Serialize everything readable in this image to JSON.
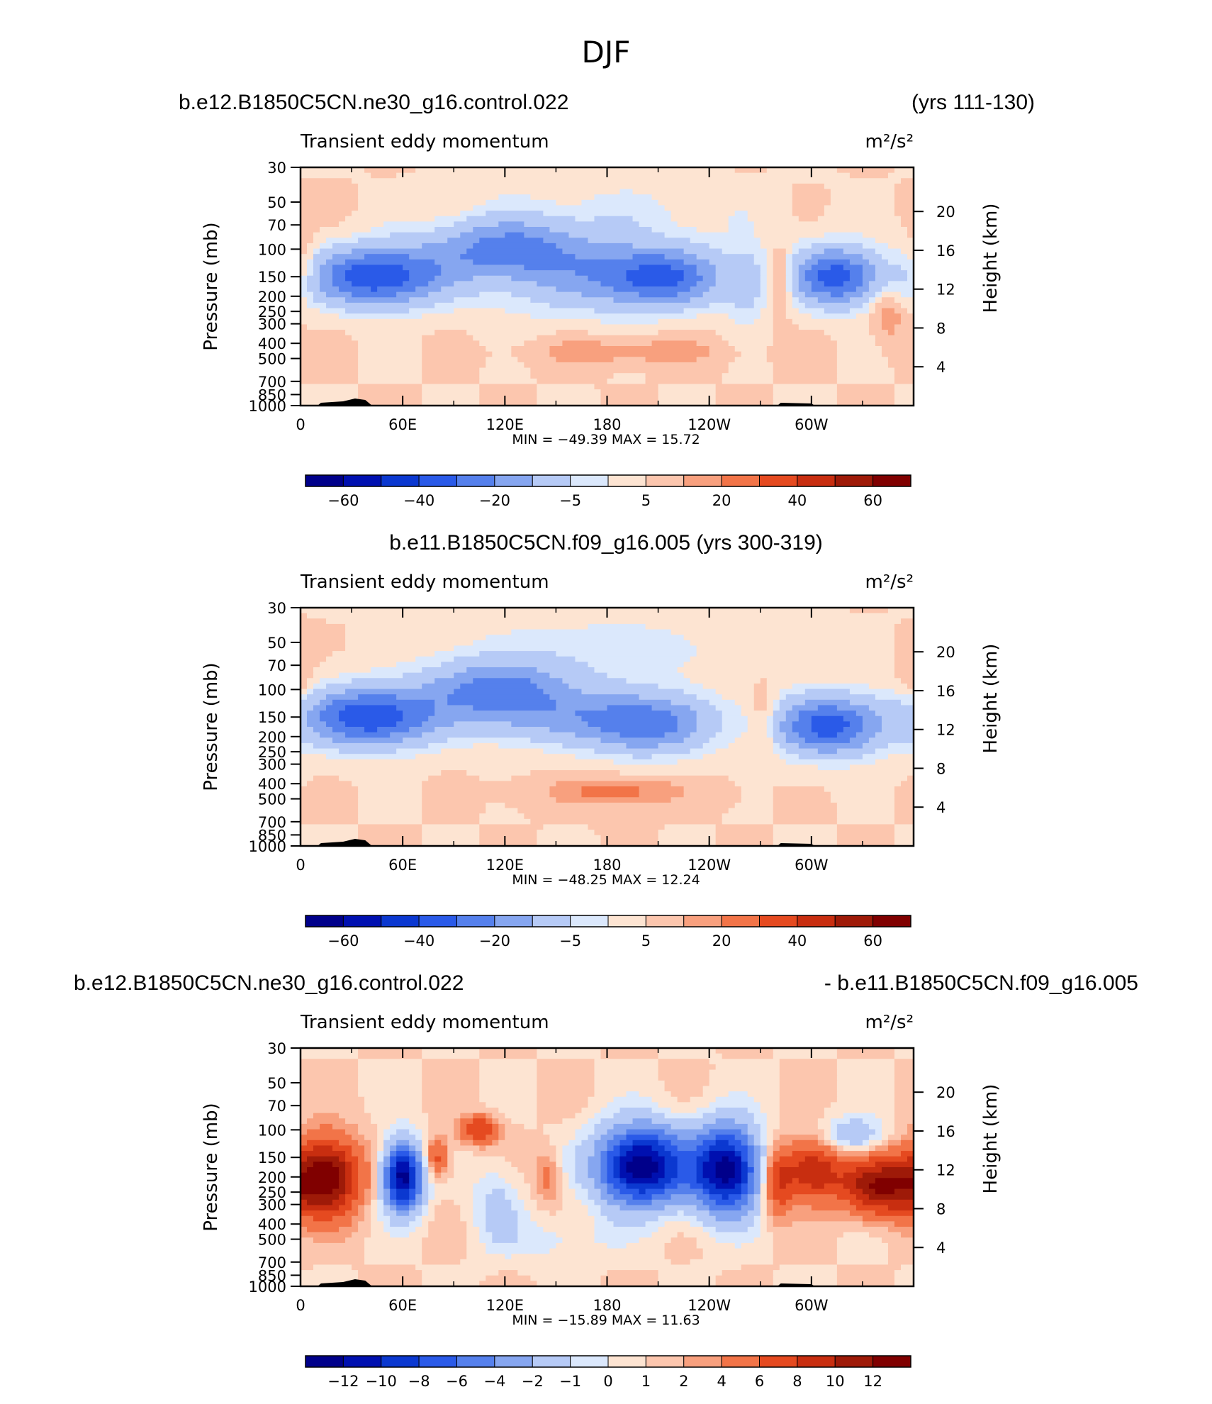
{
  "figure_title": "DJF",
  "colors": {
    "blues": [
      "#00008a",
      "#0010b0",
      "#0b38d0",
      "#2a5ae8",
      "#5580ec",
      "#86a6f0",
      "#b6caf6",
      "#dbe8fc"
    ],
    "reds": [
      "#fde4d2",
      "#fcc6ae",
      "#f8a07e",
      "#f27448",
      "#e54a20",
      "#c82e10",
      "#9e1a08",
      "#800000"
    ],
    "terrain": "#000000"
  },
  "chart_data": [
    {
      "type": "heatmap",
      "id": "panel-1",
      "case_left": "b.e12.B1850C5CN.ne30_g16.control.022",
      "case_right": "(yrs 111-130)",
      "case_center": "",
      "title": "Transient eddy momentum",
      "units": "m²/s²",
      "ylabel": "Pressure (mb)",
      "ylabel_right": "Height (km)",
      "xticks": [
        "0",
        "60E",
        "120E",
        "180",
        "120W",
        "60W"
      ],
      "yticks": [
        "30",
        "50",
        "70",
        "100",
        "150",
        "200",
        "250",
        "300",
        "400",
        "500",
        "700",
        "850",
        "1000"
      ],
      "yticks_right": [
        "20",
        "16",
        "12",
        "8",
        "4"
      ],
      "y_scale": "log-pressure",
      "ylim": [
        1000,
        30
      ],
      "xlim": [
        0,
        360
      ],
      "minmax": "MIN = −49.39   MAX =   15.72",
      "min": -49.39,
      "max": 15.72,
      "levels": [
        -70,
        -60,
        -50,
        -40,
        -30,
        -20,
        -10,
        -5,
        0,
        5,
        10,
        20,
        30,
        40,
        50,
        60,
        70
      ],
      "colorbar_labels": [
        "−60",
        "−40",
        "−20",
        "−5",
        "5",
        "20",
        "40",
        "60"
      ],
      "features": [
        {
          "lon": 45,
          "p": 150,
          "peak": -49.39,
          "lon_width": 26,
          "p_width": 0.3
        },
        {
          "lon": 120,
          "p": 100,
          "peak": -30,
          "lon_width": 32,
          "p_width": 0.3
        },
        {
          "lon": 155,
          "p": 150,
          "peak": -14,
          "lon_width": 40,
          "p_width": 0.42
        },
        {
          "lon": 210,
          "p": 150,
          "peak": -40,
          "lon_width": 27,
          "p_width": 0.3
        },
        {
          "lon": 262,
          "p": 170,
          "peak": -12,
          "lon_width": 8,
          "p_width": 0.4
        },
        {
          "lon": 282,
          "p": 160,
          "peak": 15.72,
          "lon_width": 4,
          "p_width": 0.32
        },
        {
          "lon": 315,
          "p": 150,
          "peak": -45,
          "lon_width": 18,
          "p_width": 0.3
        },
        {
          "lon": 3,
          "p": 130,
          "peak": 10,
          "lon_width": 4,
          "p_width": 0.3
        },
        {
          "lon": 345,
          "p": 250,
          "peak": 10,
          "lon_width": 7,
          "p_width": 0.3
        },
        {
          "lon": 190,
          "p": 450,
          "peak": 9,
          "lon_width": 40,
          "p_width": 0.15
        },
        {
          "lon": 185,
          "p": 60,
          "peak": -6,
          "lon_width": 60,
          "p_width": 0.35
        }
      ]
    },
    {
      "type": "heatmap",
      "id": "panel-2",
      "case_left": "",
      "case_right": "",
      "case_center": "b.e11.B1850C5CN.f09_g16.005 (yrs 300-319)",
      "title": "Transient eddy momentum",
      "units": "m²/s²",
      "ylabel": "Pressure (mb)",
      "ylabel_right": "Height (km)",
      "xticks": [
        "0",
        "60E",
        "120E",
        "180",
        "120W",
        "60W"
      ],
      "yticks": [
        "30",
        "50",
        "70",
        "100",
        "150",
        "200",
        "250",
        "300",
        "400",
        "500",
        "700",
        "850",
        "1000"
      ],
      "yticks_right": [
        "20",
        "16",
        "12",
        "8",
        "4"
      ],
      "y_scale": "log-pressure",
      "ylim": [
        1000,
        30
      ],
      "xlim": [
        0,
        360
      ],
      "minmax": "MIN = −48.25   MAX =   12.24",
      "min": -48.25,
      "max": 12.24,
      "levels": [
        -70,
        -60,
        -50,
        -40,
        -30,
        -20,
        -10,
        -5,
        0,
        5,
        10,
        20,
        30,
        40,
        50,
        60,
        70
      ],
      "colorbar_labels": [
        "−60",
        "−40",
        "−20",
        "−5",
        "5",
        "20",
        "40",
        "60"
      ],
      "features": [
        {
          "lon": 40,
          "p": 150,
          "peak": -48.25,
          "lon_width": 28,
          "p_width": 0.3
        },
        {
          "lon": 115,
          "p": 100,
          "peak": -32,
          "lon_width": 30,
          "p_width": 0.3
        },
        {
          "lon": 165,
          "p": 150,
          "peak": -20,
          "lon_width": 45,
          "p_width": 0.3
        },
        {
          "lon": 205,
          "p": 170,
          "peak": -26,
          "lon_width": 25,
          "p_width": 0.3
        },
        {
          "lon": 310,
          "p": 170,
          "peak": -45,
          "lon_width": 22,
          "p_width": 0.3
        },
        {
          "lon": 272,
          "p": 160,
          "peak": 10,
          "lon_width": 6,
          "p_width": 0.35
        },
        {
          "lon": 185,
          "p": 450,
          "peak": 12.24,
          "lon_width": 30,
          "p_width": 0.15
        },
        {
          "lon": 0,
          "p": 100,
          "peak": 7,
          "lon_width": 6,
          "p_width": 0.35
        },
        {
          "lon": 180,
          "p": 55,
          "peak": -8,
          "lon_width": 60,
          "p_width": 0.35
        }
      ]
    },
    {
      "type": "heatmap",
      "id": "panel-3",
      "case_left": "b.e12.B1850C5CN.ne30_g16.control.022",
      "case_right": "- b.e11.B1850C5CN.f09_g16.005",
      "case_center": "",
      "title": "Transient eddy momentum",
      "units": "m²/s²",
      "ylabel": "Pressure (mb)",
      "ylabel_right": "Height (km)",
      "xticks": [
        "0",
        "60E",
        "120E",
        "180",
        "120W",
        "60W"
      ],
      "yticks": [
        "30",
        "50",
        "70",
        "100",
        "150",
        "200",
        "250",
        "300",
        "400",
        "500",
        "700",
        "850",
        "1000"
      ],
      "yticks_right": [
        "20",
        "16",
        "12",
        "8",
        "4"
      ],
      "y_scale": "log-pressure",
      "ylim": [
        1000,
        30
      ],
      "xlim": [
        0,
        360
      ],
      "minmax": "MIN = −15.89   MAX =   11.63",
      "min": -15.89,
      "max": 11.63,
      "levels": [
        -14,
        -12,
        -10,
        -8,
        -6,
        -4,
        -2,
        -1,
        0,
        1,
        2,
        4,
        6,
        8,
        10,
        12,
        14
      ],
      "colorbar_labels": [
        "−12",
        "−10",
        "−8",
        "−6",
        "−4",
        "−2",
        "−1",
        "0",
        "1",
        "2",
        "4",
        "6",
        "8",
        "10",
        "12"
      ],
      "features": [
        {
          "lon": 15,
          "p": 200,
          "peak": 11.63,
          "lon_width": 14,
          "p_width": 0.4
        },
        {
          "lon": 60,
          "p": 200,
          "peak": -15,
          "lon_width": 8,
          "p_width": 0.35
        },
        {
          "lon": 105,
          "p": 100,
          "peak": 6,
          "lon_width": 8,
          "p_width": 0.15
        },
        {
          "lon": 80,
          "p": 150,
          "peak": 5,
          "lon_width": 5,
          "p_width": 0.2
        },
        {
          "lon": 200,
          "p": 170,
          "peak": -15.89,
          "lon_width": 18,
          "p_width": 0.4
        },
        {
          "lon": 250,
          "p": 180,
          "peak": -15,
          "lon_width": 14,
          "p_width": 0.45
        },
        {
          "lon": 300,
          "p": 180,
          "peak": 8,
          "lon_width": 12,
          "p_width": 0.3
        },
        {
          "lon": 340,
          "p": 230,
          "peak": 10,
          "lon_width": 16,
          "p_width": 0.3
        },
        {
          "lon": 280,
          "p": 220,
          "peak": 6,
          "lon_width": 6,
          "p_width": 0.35
        },
        {
          "lon": 145,
          "p": 200,
          "peak": 3,
          "lon_width": 5,
          "p_width": 0.25
        },
        {
          "lon": 115,
          "p": 300,
          "peak": -2.5,
          "lon_width": 10,
          "p_width": 0.4
        },
        {
          "lon": 325,
          "p": 110,
          "peak": -4,
          "lon_width": 12,
          "p_width": 0.2
        },
        {
          "lon": 150,
          "p": 500,
          "peak": -1.5,
          "lon_width": 25,
          "p_width": 0.25
        }
      ]
    }
  ]
}
